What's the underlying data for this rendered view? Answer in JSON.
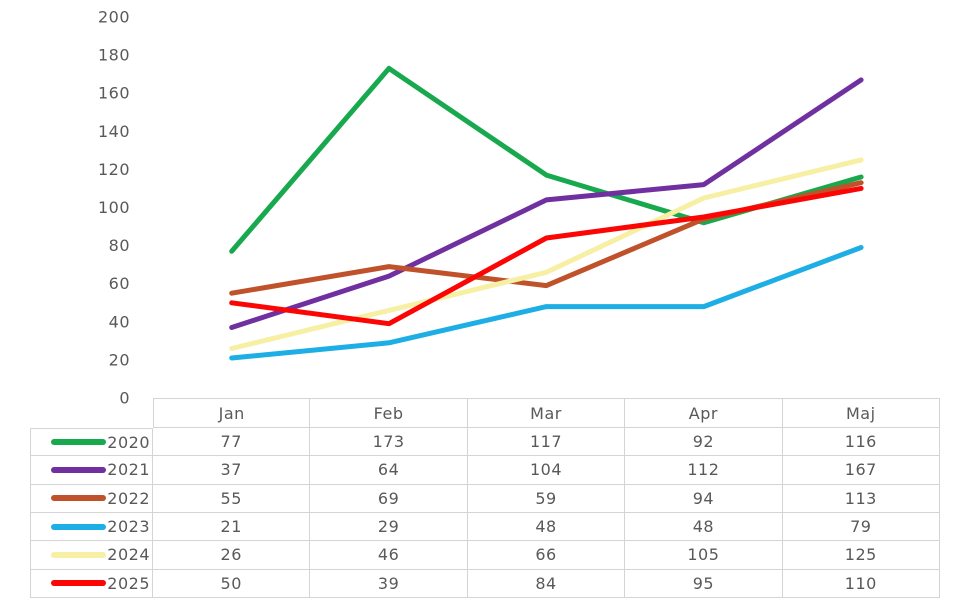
{
  "chart_data": {
    "type": "line",
    "title": "",
    "xlabel": "",
    "ylabel": "",
    "categories": [
      "Jan",
      "Feb",
      "Mar",
      "Apr",
      "Maj"
    ],
    "series": [
      {
        "name": "2020",
        "color": "#18A94E",
        "values": [
          77,
          173,
          117,
          92,
          116
        ]
      },
      {
        "name": "2021",
        "color": "#7030A0",
        "values": [
          37,
          64,
          104,
          112,
          167
        ]
      },
      {
        "name": "2022",
        "color": "#C0522B",
        "values": [
          55,
          69,
          59,
          94,
          113
        ]
      },
      {
        "name": "2023",
        "color": "#1CAEE4",
        "values": [
          21,
          29,
          48,
          48,
          79
        ]
      },
      {
        "name": "2024",
        "color": "#F6EFA4",
        "values": [
          26,
          46,
          66,
          105,
          125
        ]
      },
      {
        "name": "2025",
        "color": "#FB0505",
        "values": [
          50,
          39,
          84,
          95,
          110
        ]
      }
    ],
    "yticks": [
      0,
      20,
      40,
      60,
      80,
      100,
      120,
      140,
      160,
      180,
      200
    ],
    "ylim": [
      0,
      200
    ],
    "grid": false,
    "legend_position": "data-table-left",
    "text_color": "#595959",
    "border_color": "#d4d4d4",
    "line_width": 5
  }
}
